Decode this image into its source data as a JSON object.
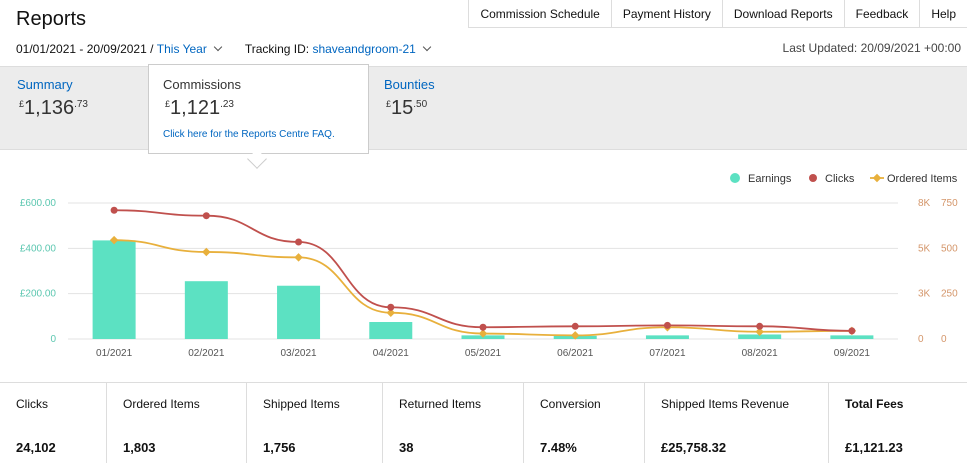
{
  "page": {
    "title": "Reports"
  },
  "topnav": [
    {
      "label": "Commission Schedule",
      "name": "commission-schedule-link"
    },
    {
      "label": "Payment History",
      "name": "payment-history-link"
    },
    {
      "label": "Download Reports",
      "name": "download-reports-link"
    },
    {
      "label": "Feedback",
      "name": "feedback-link"
    },
    {
      "label": "Help",
      "name": "help-link"
    }
  ],
  "filters": {
    "date_range": "01/01/2021 - 20/09/2021 /",
    "period": "This Year",
    "tracking_label": "Tracking ID:",
    "tracking_id": "shaveandgroom-21",
    "last_updated": "Last Updated: 20/09/2021 +00:00"
  },
  "cards": {
    "summary": {
      "label": "Summary",
      "currency": "£",
      "main": "1,136",
      "decimals": ".73"
    },
    "commissions": {
      "label": "Commissions",
      "currency": "£",
      "main": "1,121",
      "decimals": ".23",
      "faq": "Click here for the Reports Centre FAQ."
    },
    "bounties": {
      "label": "Bounties",
      "currency": "£",
      "main": "15",
      "decimals": ".50"
    }
  },
  "chart_data": {
    "type": "bar",
    "categories": [
      "01/2021",
      "02/2021",
      "03/2021",
      "04/2021",
      "05/2021",
      "06/2021",
      "07/2021",
      "08/2021",
      "09/2021"
    ],
    "series": [
      {
        "name": "Earnings",
        "kind": "bar",
        "axis": "left",
        "color": "#5ce1c2",
        "values": [
          435,
          255,
          235,
          75,
          16,
          14,
          16,
          20,
          16
        ]
      },
      {
        "name": "Clicks",
        "kind": "line",
        "axis": "right1",
        "color": "#c0504d",
        "values": [
          7100,
          6800,
          5350,
          1750,
          650,
          700,
          750,
          700,
          450
        ]
      },
      {
        "name": "Ordered Items",
        "kind": "line",
        "axis": "right2",
        "color": "#e8b03c",
        "values": [
          545,
          480,
          450,
          145,
          30,
          20,
          65,
          40,
          45
        ]
      }
    ],
    "axes": {
      "left": {
        "ticks": [
          0,
          200,
          400,
          600
        ],
        "labels": [
          "0",
          "£200.00",
          "£400.00",
          "£600.00"
        ],
        "ylim": [
          0,
          600
        ]
      },
      "right1": {
        "ticks": [
          0,
          2500,
          5000,
          7500
        ],
        "labels": [
          "0",
          "3K",
          "5K",
          "8K"
        ],
        "ylim": [
          0,
          7500
        ]
      },
      "right2": {
        "ticks": [
          0,
          250,
          500,
          750
        ],
        "labels": [
          "0",
          "250",
          "500",
          "750"
        ],
        "ylim": [
          0,
          750
        ]
      }
    },
    "legend": {
      "position": "top-right",
      "entries": [
        "Earnings",
        "Clicks",
        "Ordered Items"
      ]
    },
    "grid": true
  },
  "stats": [
    {
      "label": "Clicks",
      "value": "24,102",
      "width": 107
    },
    {
      "label": "Ordered Items",
      "value": "1,803",
      "width": 140
    },
    {
      "label": "Shipped Items",
      "value": "1,756",
      "width": 136
    },
    {
      "label": "Returned Items",
      "value": "38",
      "width": 141
    },
    {
      "label": "Conversion",
      "value": "7.48%",
      "width": 121
    },
    {
      "label": "Shipped Items Revenue",
      "value": "£25,758.32",
      "width": 184
    },
    {
      "label": "Total Fees",
      "value": "£1,121.23",
      "width": 138,
      "bold": true
    }
  ]
}
